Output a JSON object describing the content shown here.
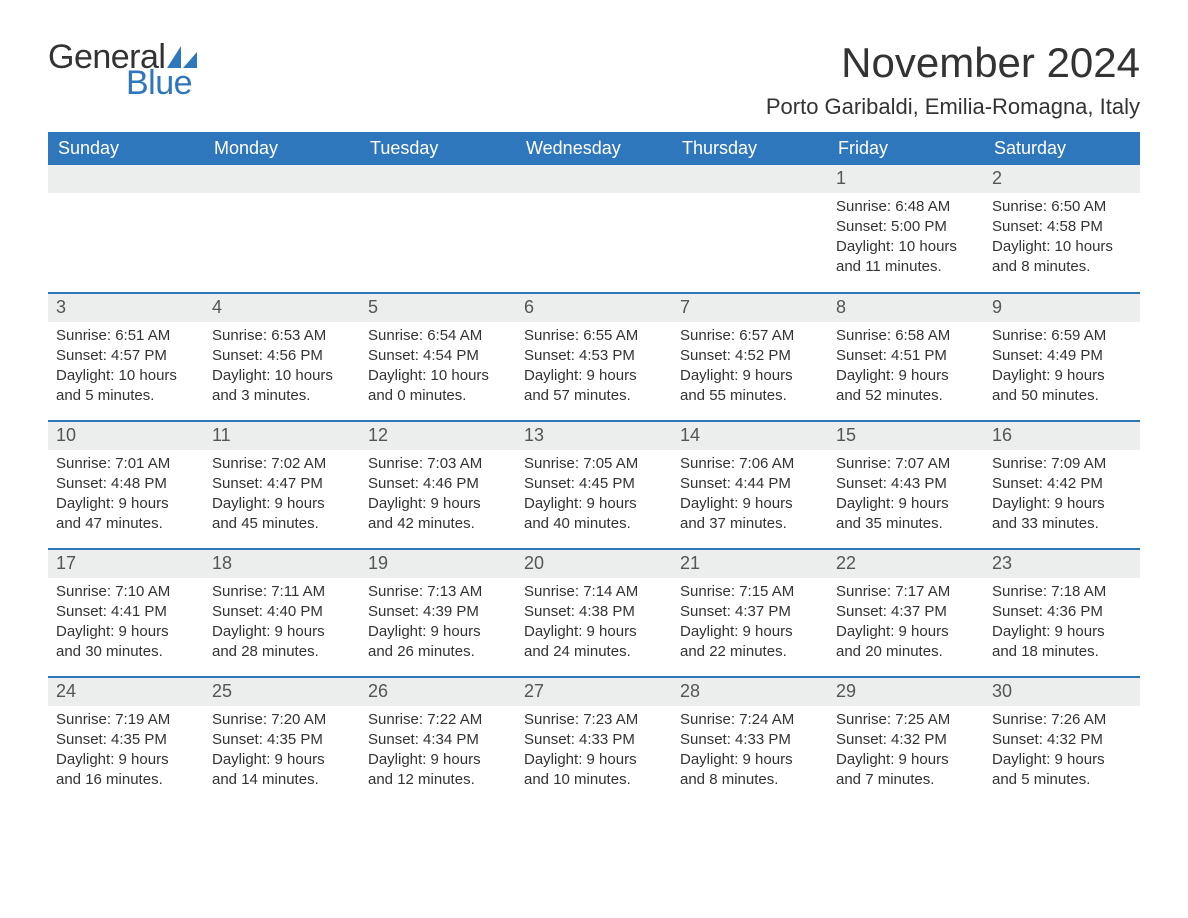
{
  "brand": {
    "word1": "General",
    "word2": "Blue",
    "sail_color": "#2f77bc"
  },
  "colors": {
    "header_bg": "#2f77bc",
    "header_text": "#ffffff",
    "daynum_bg": "#eceded",
    "text": "#333333",
    "row_border": "#2f77bc",
    "background": "#ffffff"
  },
  "title": "November 2024",
  "location": "Porto Garibaldi, Emilia-Romagna, Italy",
  "weekdays": [
    "Sunday",
    "Monday",
    "Tuesday",
    "Wednesday",
    "Thursday",
    "Friday",
    "Saturday"
  ],
  "labels": {
    "sunrise": "Sunrise:",
    "sunset": "Sunset:",
    "daylight": "Daylight:"
  },
  "weeks": [
    [
      {
        "day": "",
        "sunrise": "",
        "sunset": "",
        "daylight": ""
      },
      {
        "day": "",
        "sunrise": "",
        "sunset": "",
        "daylight": ""
      },
      {
        "day": "",
        "sunrise": "",
        "sunset": "",
        "daylight": ""
      },
      {
        "day": "",
        "sunrise": "",
        "sunset": "",
        "daylight": ""
      },
      {
        "day": "",
        "sunrise": "",
        "sunset": "",
        "daylight": ""
      },
      {
        "day": "1",
        "sunrise": "6:48 AM",
        "sunset": "5:00 PM",
        "daylight": "10 hours and 11 minutes."
      },
      {
        "day": "2",
        "sunrise": "6:50 AM",
        "sunset": "4:58 PM",
        "daylight": "10 hours and 8 minutes."
      }
    ],
    [
      {
        "day": "3",
        "sunrise": "6:51 AM",
        "sunset": "4:57 PM",
        "daylight": "10 hours and 5 minutes."
      },
      {
        "day": "4",
        "sunrise": "6:53 AM",
        "sunset": "4:56 PM",
        "daylight": "10 hours and 3 minutes."
      },
      {
        "day": "5",
        "sunrise": "6:54 AM",
        "sunset": "4:54 PM",
        "daylight": "10 hours and 0 minutes."
      },
      {
        "day": "6",
        "sunrise": "6:55 AM",
        "sunset": "4:53 PM",
        "daylight": "9 hours and 57 minutes."
      },
      {
        "day": "7",
        "sunrise": "6:57 AM",
        "sunset": "4:52 PM",
        "daylight": "9 hours and 55 minutes."
      },
      {
        "day": "8",
        "sunrise": "6:58 AM",
        "sunset": "4:51 PM",
        "daylight": "9 hours and 52 minutes."
      },
      {
        "day": "9",
        "sunrise": "6:59 AM",
        "sunset": "4:49 PM",
        "daylight": "9 hours and 50 minutes."
      }
    ],
    [
      {
        "day": "10",
        "sunrise": "7:01 AM",
        "sunset": "4:48 PM",
        "daylight": "9 hours and 47 minutes."
      },
      {
        "day": "11",
        "sunrise": "7:02 AM",
        "sunset": "4:47 PM",
        "daylight": "9 hours and 45 minutes."
      },
      {
        "day": "12",
        "sunrise": "7:03 AM",
        "sunset": "4:46 PM",
        "daylight": "9 hours and 42 minutes."
      },
      {
        "day": "13",
        "sunrise": "7:05 AM",
        "sunset": "4:45 PM",
        "daylight": "9 hours and 40 minutes."
      },
      {
        "day": "14",
        "sunrise": "7:06 AM",
        "sunset": "4:44 PM",
        "daylight": "9 hours and 37 minutes."
      },
      {
        "day": "15",
        "sunrise": "7:07 AM",
        "sunset": "4:43 PM",
        "daylight": "9 hours and 35 minutes."
      },
      {
        "day": "16",
        "sunrise": "7:09 AM",
        "sunset": "4:42 PM",
        "daylight": "9 hours and 33 minutes."
      }
    ],
    [
      {
        "day": "17",
        "sunrise": "7:10 AM",
        "sunset": "4:41 PM",
        "daylight": "9 hours and 30 minutes."
      },
      {
        "day": "18",
        "sunrise": "7:11 AM",
        "sunset": "4:40 PM",
        "daylight": "9 hours and 28 minutes."
      },
      {
        "day": "19",
        "sunrise": "7:13 AM",
        "sunset": "4:39 PM",
        "daylight": "9 hours and 26 minutes."
      },
      {
        "day": "20",
        "sunrise": "7:14 AM",
        "sunset": "4:38 PM",
        "daylight": "9 hours and 24 minutes."
      },
      {
        "day": "21",
        "sunrise": "7:15 AM",
        "sunset": "4:37 PM",
        "daylight": "9 hours and 22 minutes."
      },
      {
        "day": "22",
        "sunrise": "7:17 AM",
        "sunset": "4:37 PM",
        "daylight": "9 hours and 20 minutes."
      },
      {
        "day": "23",
        "sunrise": "7:18 AM",
        "sunset": "4:36 PM",
        "daylight": "9 hours and 18 minutes."
      }
    ],
    [
      {
        "day": "24",
        "sunrise": "7:19 AM",
        "sunset": "4:35 PM",
        "daylight": "9 hours and 16 minutes."
      },
      {
        "day": "25",
        "sunrise": "7:20 AM",
        "sunset": "4:35 PM",
        "daylight": "9 hours and 14 minutes."
      },
      {
        "day": "26",
        "sunrise": "7:22 AM",
        "sunset": "4:34 PM",
        "daylight": "9 hours and 12 minutes."
      },
      {
        "day": "27",
        "sunrise": "7:23 AM",
        "sunset": "4:33 PM",
        "daylight": "9 hours and 10 minutes."
      },
      {
        "day": "28",
        "sunrise": "7:24 AM",
        "sunset": "4:33 PM",
        "daylight": "9 hours and 8 minutes."
      },
      {
        "day": "29",
        "sunrise": "7:25 AM",
        "sunset": "4:32 PM",
        "daylight": "9 hours and 7 minutes."
      },
      {
        "day": "30",
        "sunrise": "7:26 AM",
        "sunset": "4:32 PM",
        "daylight": "9 hours and 5 minutes."
      }
    ]
  ]
}
